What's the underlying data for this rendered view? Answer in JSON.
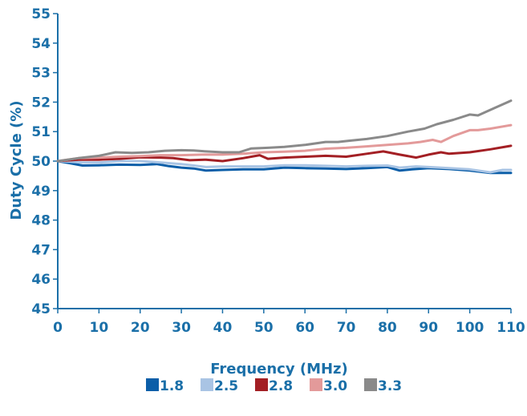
{
  "chart_data": {
    "type": "line",
    "title": "",
    "xlabel": "Frequency (MHz)",
    "ylabel": "Duty Cycle  (%)",
    "xlim": [
      0,
      110
    ],
    "ylim": [
      45,
      55
    ],
    "x_ticks": [
      "0",
      "10",
      "20",
      "30",
      "40",
      "50",
      "60",
      "70",
      "80",
      "90",
      "100",
      "110"
    ],
    "y_ticks": [
      "45",
      "46",
      "47",
      "48",
      "49",
      "50",
      "51",
      "52",
      "53",
      "54",
      "55"
    ],
    "grid": false,
    "legend_position": "bottom",
    "series": [
      {
        "name": "1.8",
        "color": "#0b5ea8",
        "points": [
          [
            0,
            50.0
          ],
          [
            3,
            49.93
          ],
          [
            6,
            49.85
          ],
          [
            10,
            49.86
          ],
          [
            15,
            49.88
          ],
          [
            20,
            49.87
          ],
          [
            24,
            49.9
          ],
          [
            27,
            49.83
          ],
          [
            30,
            49.78
          ],
          [
            33,
            49.75
          ],
          [
            36,
            49.68
          ],
          [
            40,
            49.7
          ],
          [
            45,
            49.72
          ],
          [
            50,
            49.72
          ],
          [
            55,
            49.78
          ],
          [
            60,
            49.76
          ],
          [
            65,
            49.75
          ],
          [
            70,
            49.73
          ],
          [
            75,
            49.76
          ],
          [
            80,
            49.8
          ],
          [
            83,
            49.68
          ],
          [
            86,
            49.72
          ],
          [
            90,
            49.76
          ],
          [
            95,
            49.73
          ],
          [
            100,
            49.68
          ],
          [
            105,
            49.6
          ],
          [
            110,
            49.6
          ]
        ]
      },
      {
        "name": "2.5",
        "color": "#a9c4e4",
        "points": [
          [
            0,
            50.0
          ],
          [
            3,
            49.98
          ],
          [
            6,
            49.95
          ],
          [
            10,
            49.95
          ],
          [
            15,
            50.0
          ],
          [
            20,
            50.0
          ],
          [
            25,
            49.95
          ],
          [
            30,
            49.9
          ],
          [
            33,
            49.85
          ],
          [
            36,
            49.8
          ],
          [
            40,
            49.82
          ],
          [
            45,
            49.82
          ],
          [
            50,
            49.82
          ],
          [
            55,
            49.86
          ],
          [
            60,
            49.86
          ],
          [
            65,
            49.84
          ],
          [
            70,
            49.82
          ],
          [
            75,
            49.84
          ],
          [
            80,
            49.85
          ],
          [
            83,
            49.78
          ],
          [
            87,
            49.82
          ],
          [
            90,
            49.8
          ],
          [
            95,
            49.76
          ],
          [
            100,
            49.72
          ],
          [
            105,
            49.62
          ],
          [
            108,
            49.7
          ],
          [
            110,
            49.7
          ]
        ]
      },
      {
        "name": "2.8",
        "color": "#a31f24",
        "points": [
          [
            0,
            50.0
          ],
          [
            5,
            50.05
          ],
          [
            10,
            50.05
          ],
          [
            15,
            50.08
          ],
          [
            20,
            50.13
          ],
          [
            25,
            50.12
          ],
          [
            28,
            50.1
          ],
          [
            32,
            50.03
          ],
          [
            36,
            50.05
          ],
          [
            40,
            50.0
          ],
          [
            45,
            50.1
          ],
          [
            49,
            50.2
          ],
          [
            51,
            50.08
          ],
          [
            55,
            50.12
          ],
          [
            60,
            50.15
          ],
          [
            65,
            50.18
          ],
          [
            70,
            50.15
          ],
          [
            75,
            50.25
          ],
          [
            79,
            50.33
          ],
          [
            83,
            50.22
          ],
          [
            87,
            50.12
          ],
          [
            90,
            50.22
          ],
          [
            93,
            50.3
          ],
          [
            95,
            50.25
          ],
          [
            100,
            50.3
          ],
          [
            105,
            50.4
          ],
          [
            110,
            50.52
          ]
        ]
      },
      {
        "name": "3.0",
        "color": "#e39a9a",
        "points": [
          [
            0,
            50.0
          ],
          [
            5,
            50.1
          ],
          [
            10,
            50.12
          ],
          [
            15,
            50.15
          ],
          [
            20,
            50.17
          ],
          [
            25,
            50.2
          ],
          [
            30,
            50.2
          ],
          [
            35,
            50.22
          ],
          [
            40,
            50.22
          ],
          [
            45,
            50.25
          ],
          [
            50,
            50.3
          ],
          [
            55,
            50.32
          ],
          [
            60,
            50.35
          ],
          [
            65,
            50.42
          ],
          [
            70,
            50.45
          ],
          [
            75,
            50.5
          ],
          [
            80,
            50.55
          ],
          [
            85,
            50.6
          ],
          [
            88,
            50.65
          ],
          [
            91,
            50.72
          ],
          [
            93,
            50.65
          ],
          [
            96,
            50.85
          ],
          [
            100,
            51.05
          ],
          [
            102,
            51.05
          ],
          [
            105,
            51.1
          ],
          [
            110,
            51.22
          ]
        ]
      },
      {
        "name": "3.3",
        "color": "#8a8a8a",
        "points": [
          [
            0,
            50.0
          ],
          [
            5,
            50.1
          ],
          [
            10,
            50.18
          ],
          [
            14,
            50.3
          ],
          [
            18,
            50.28
          ],
          [
            22,
            50.3
          ],
          [
            26,
            50.35
          ],
          [
            30,
            50.37
          ],
          [
            33,
            50.36
          ],
          [
            36,
            50.33
          ],
          [
            40,
            50.3
          ],
          [
            44,
            50.3
          ],
          [
            47,
            50.43
          ],
          [
            51,
            50.45
          ],
          [
            55,
            50.48
          ],
          [
            60,
            50.55
          ],
          [
            65,
            50.65
          ],
          [
            68,
            50.65
          ],
          [
            70,
            50.68
          ],
          [
            75,
            50.75
          ],
          [
            80,
            50.85
          ],
          [
            85,
            51.0
          ],
          [
            89,
            51.1
          ],
          [
            92,
            51.25
          ],
          [
            96,
            51.4
          ],
          [
            100,
            51.58
          ],
          [
            102,
            51.55
          ],
          [
            106,
            51.8
          ],
          [
            110,
            52.05
          ]
        ]
      }
    ]
  }
}
